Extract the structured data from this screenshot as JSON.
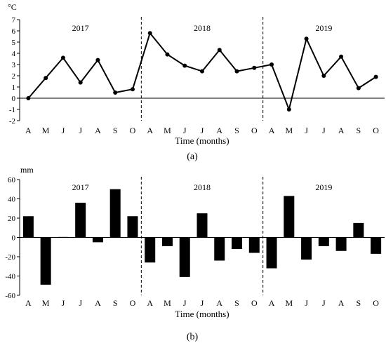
{
  "chart_data": [
    {
      "type": "line",
      "panel_label": "(a)",
      "unit_label": "°C",
      "xlabel": "Time (months)",
      "categories": [
        "A",
        "M",
        "J",
        "J",
        "A",
        "S",
        "O",
        "A",
        "M",
        "J",
        "J",
        "A",
        "S",
        "O",
        "A",
        "M",
        "J",
        "J",
        "A",
        "S",
        "O"
      ],
      "values": [
        0,
        1.8,
        3.6,
        1.4,
        3.4,
        0.5,
        0.8,
        5.8,
        3.9,
        2.9,
        2.4,
        4.3,
        2.4,
        2.7,
        3.0,
        -1.0,
        5.3,
        2.0,
        3.7,
        0.9,
        1.9
      ],
      "ylim": [
        -2,
        7
      ],
      "yticks": [
        -2,
        -1,
        0,
        1,
        2,
        3,
        4,
        5,
        6,
        7
      ],
      "year_labels": [
        "2017",
        "2018",
        "2019"
      ],
      "color": "#000000"
    },
    {
      "type": "bar",
      "panel_label": "(b)",
      "unit_label": "mm",
      "xlabel": "Time (months)",
      "categories": [
        "A",
        "M",
        "J",
        "J",
        "A",
        "S",
        "O",
        "A",
        "M",
        "J",
        "J",
        "A",
        "S",
        "O",
        "A",
        "M",
        "J",
        "J",
        "A",
        "S",
        "O"
      ],
      "values": [
        22,
        -49,
        0.5,
        36,
        -5,
        50,
        22,
        -26,
        -9,
        -41,
        25,
        -24,
        -12,
        -16,
        -32,
        43,
        -23,
        -9,
        -14,
        15,
        -17
      ],
      "ylim": [
        -60,
        60
      ],
      "yticks": [
        -60,
        -40,
        -20,
        0,
        20,
        40,
        60
      ],
      "year_labels": [
        "2017",
        "2018",
        "2019"
      ],
      "color": "#000000"
    }
  ]
}
